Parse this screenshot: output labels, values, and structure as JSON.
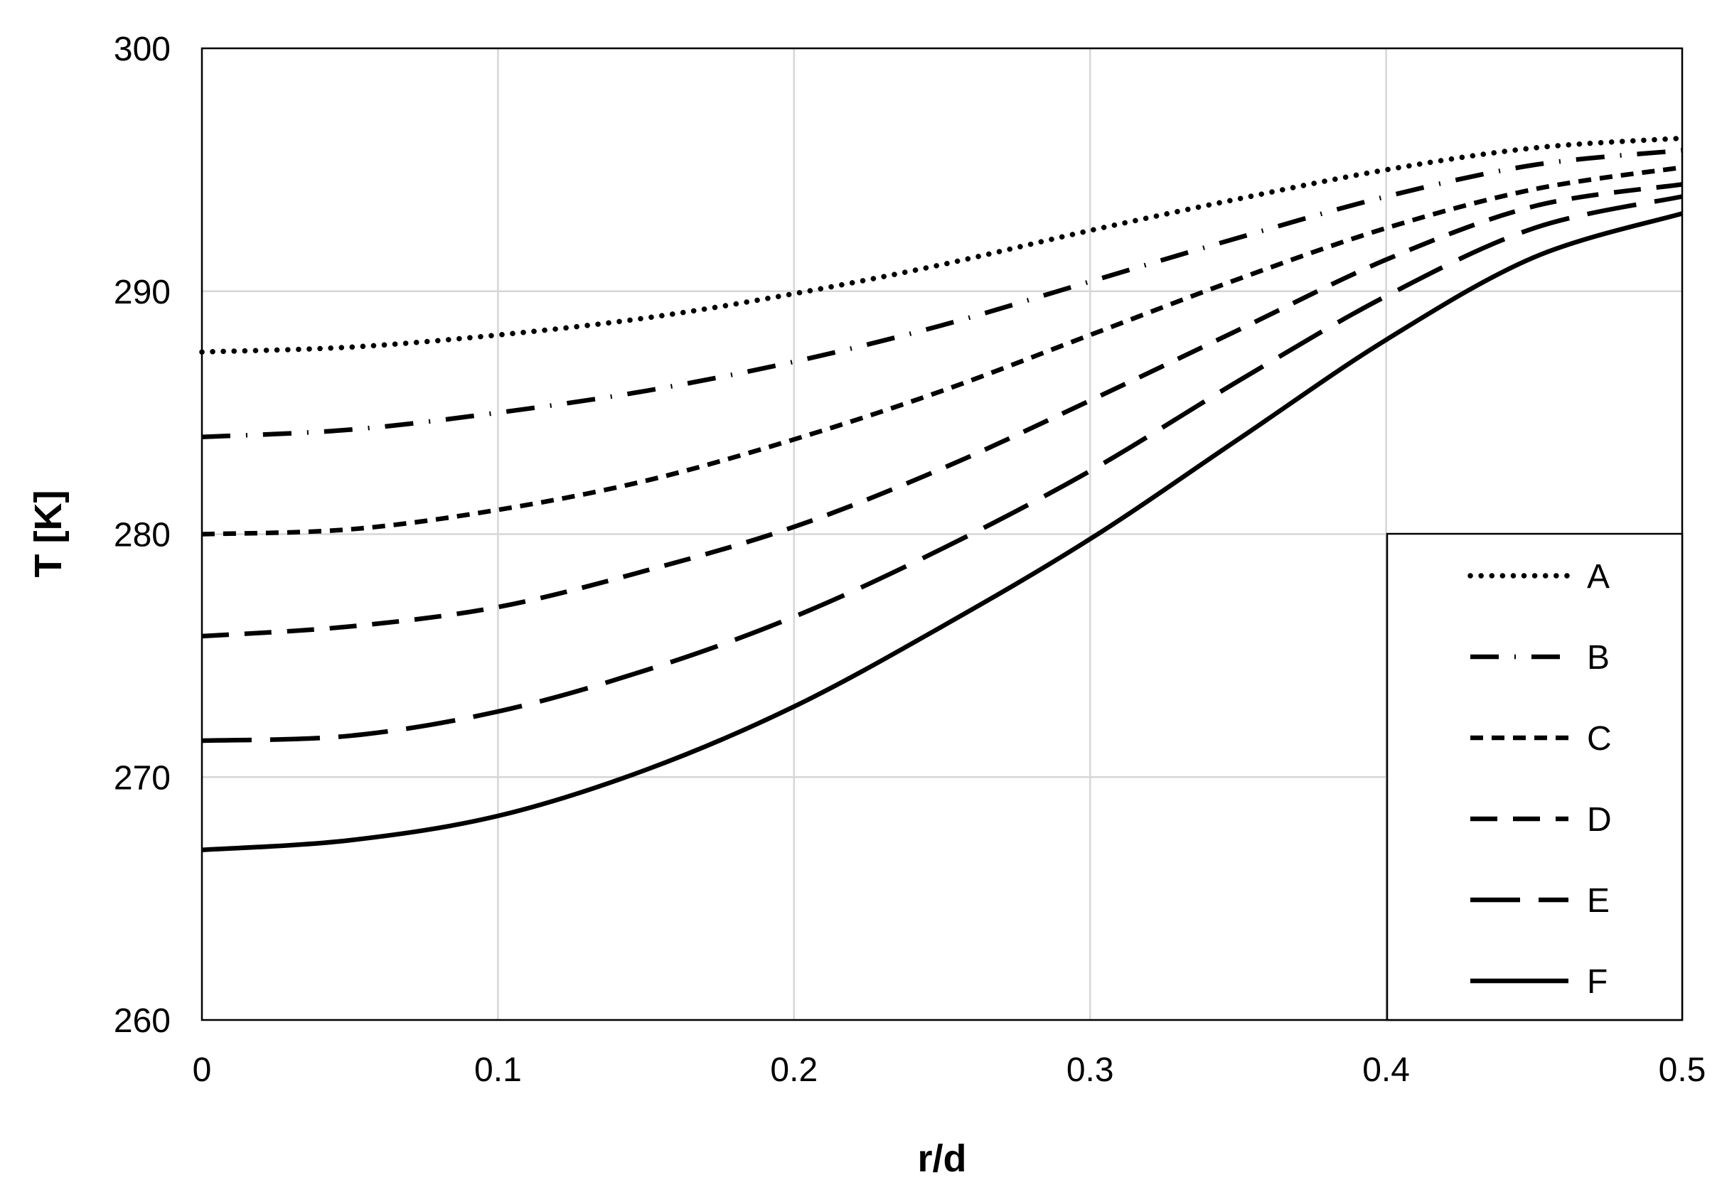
{
  "chart_data": {
    "type": "line",
    "title": "",
    "xlabel": "r/d",
    "ylabel": "T [K]",
    "xlim": [
      0,
      0.5
    ],
    "ylim": [
      260,
      300
    ],
    "xticks": [
      "0",
      "0.1",
      "0.2",
      "0.3",
      "0.4",
      "0.5"
    ],
    "yticks": [
      "260",
      "270",
      "280",
      "290",
      "300"
    ],
    "grid": true,
    "legend_position": "bottom-right",
    "x": [
      0,
      0.05,
      0.1,
      0.15,
      0.2,
      0.25,
      0.3,
      0.35,
      0.4,
      0.45,
      0.5
    ],
    "series": [
      {
        "name": "A",
        "style": "dotted",
        "values": [
          287.5,
          287.7,
          288.2,
          288.9,
          289.9,
          291.1,
          292.5,
          293.8,
          295.0,
          295.9,
          296.3
        ]
      },
      {
        "name": "B",
        "style": "dashdot",
        "values": [
          284.0,
          284.3,
          285.0,
          285.9,
          287.1,
          288.6,
          290.4,
          292.2,
          293.9,
          295.2,
          295.8
        ]
      },
      {
        "name": "C",
        "style": "shortdash",
        "values": [
          280.0,
          280.2,
          281.0,
          282.2,
          283.9,
          285.9,
          288.2,
          290.5,
          292.6,
          294.2,
          295.1
        ]
      },
      {
        "name": "D",
        "style": "dash",
        "values": [
          275.8,
          276.2,
          277.0,
          278.5,
          280.3,
          282.7,
          285.5,
          288.4,
          291.3,
          293.5,
          294.4
        ]
      },
      {
        "name": "E",
        "style": "longdash",
        "values": [
          271.5,
          271.7,
          272.7,
          274.4,
          276.6,
          279.4,
          282.6,
          286.3,
          289.8,
          292.6,
          293.9
        ]
      },
      {
        "name": "F",
        "style": "solid",
        "values": [
          267.0,
          267.4,
          268.4,
          270.3,
          272.9,
          276.2,
          279.8,
          283.9,
          288.0,
          291.4,
          293.2
        ]
      }
    ]
  }
}
